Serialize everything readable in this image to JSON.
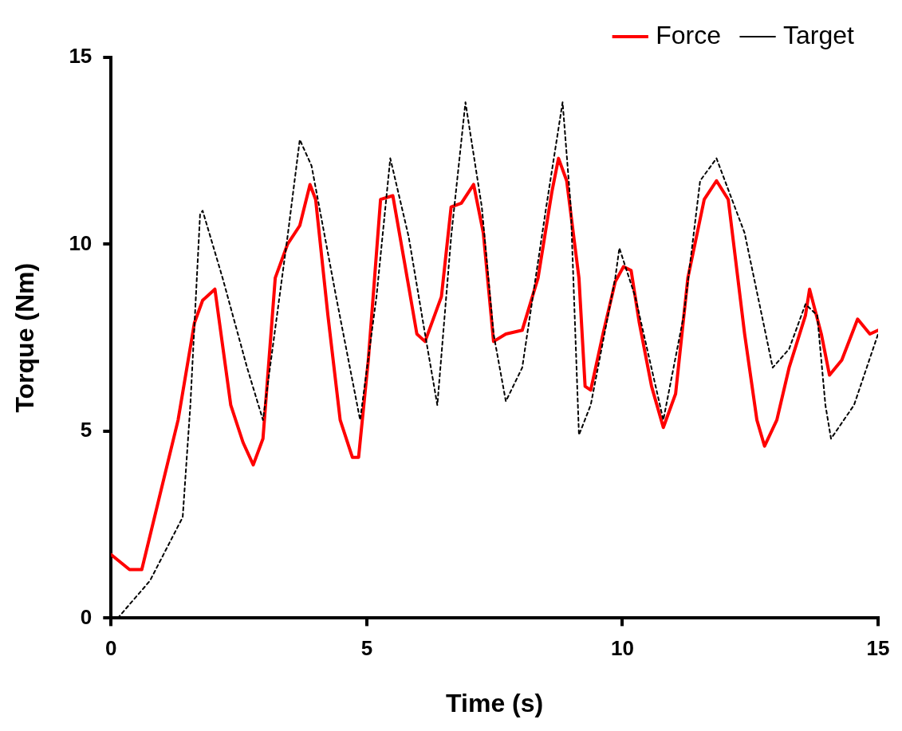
{
  "chart_data": {
    "type": "line",
    "xlabel": "Time (s)",
    "ylabel": "Torque (Nm)",
    "xlim": [
      0,
      15
    ],
    "xticks": [
      0,
      5,
      10,
      15
    ],
    "ylim": [
      0,
      15
    ],
    "yticks": [
      0,
      5,
      10,
      15
    ],
    "grid": false,
    "legend": "top right",
    "marker": "none",
    "series": [
      {
        "name": "Target",
        "color": "#000000",
        "line_style": "dotted",
        "x": [
          0.13,
          0.76,
          1.4,
          1.55,
          1.74,
          1.79,
          2.18,
          2.66,
          2.97,
          3.45,
          3.69,
          3.92,
          4.4,
          4.87,
          5.19,
          5.46,
          5.82,
          6.14,
          6.38,
          6.65,
          6.93,
          7.25,
          7.48,
          7.72,
          8.04,
          8.51,
          8.83,
          8.99,
          9.15,
          9.38,
          9.86,
          9.94,
          10.25,
          10.8,
          11.2,
          11.52,
          11.84,
          12.39,
          12.94,
          13.26,
          13.58,
          13.81,
          13.97,
          14.08,
          14.53,
          15
        ],
        "values": [
          0,
          1,
          2.7,
          5.7,
          10.8,
          10.9,
          9.1,
          6.7,
          5.3,
          10.2,
          12.8,
          12.1,
          8.6,
          5.3,
          8.6,
          12.3,
          10.2,
          7.6,
          5.7,
          10.2,
          13.8,
          11,
          7.6,
          5.8,
          6.7,
          11,
          13.8,
          11,
          4.9,
          5.7,
          9.1,
          9.9,
          8.6,
          5.3,
          8.1,
          11.7,
          12.3,
          10.3,
          6.7,
          7.2,
          8.4,
          8.1,
          5.7,
          4.8,
          5.7,
          7.6
        ]
      },
      {
        "name": "Force",
        "color": "#ff0000",
        "line_style": "solid",
        "x": [
          0,
          0.36,
          0.6,
          0.92,
          1.31,
          1.63,
          1.79,
          2.03,
          2.34,
          2.58,
          2.78,
          2.97,
          3.21,
          3.45,
          3.69,
          3.89,
          4.0,
          4.24,
          4.48,
          4.72,
          4.84,
          5.03,
          5.27,
          5.51,
          5.74,
          5.98,
          6.14,
          6.46,
          6.65,
          6.85,
          7.09,
          7.28,
          7.48,
          7.72,
          8.04,
          8.35,
          8.62,
          8.75,
          8.91,
          9.15,
          9.27,
          9.38,
          9.62,
          9.86,
          10.02,
          10.17,
          10.33,
          10.57,
          10.8,
          11.04,
          11.28,
          11.6,
          11.84,
          12.07,
          12.39,
          12.63,
          12.78,
          13.02,
          13.26,
          13.58,
          13.66,
          13.89,
          14.05,
          14.29,
          14.6,
          14.84,
          15
        ],
        "values": [
          1.7,
          1.3,
          1.3,
          3.1,
          5.3,
          7.9,
          8.5,
          8.8,
          5.7,
          4.7,
          4.1,
          4.8,
          9.1,
          10,
          10.5,
          11.6,
          11.2,
          8.1,
          5.3,
          4.3,
          4.3,
          6.9,
          11.2,
          11.3,
          9.5,
          7.6,
          7.4,
          8.6,
          11,
          11.1,
          11.6,
          10.3,
          7.4,
          7.6,
          7.7,
          9.1,
          11.4,
          12.3,
          11.7,
          9.1,
          6.2,
          6.1,
          7.6,
          9,
          9.4,
          9.3,
          7.9,
          6.2,
          5.1,
          6,
          9.1,
          11.2,
          11.7,
          11.2,
          7.6,
          5.3,
          4.6,
          5.3,
          6.7,
          8.1,
          8.8,
          7.6,
          6.5,
          6.9,
          8,
          7.6,
          7.7
        ]
      }
    ]
  }
}
